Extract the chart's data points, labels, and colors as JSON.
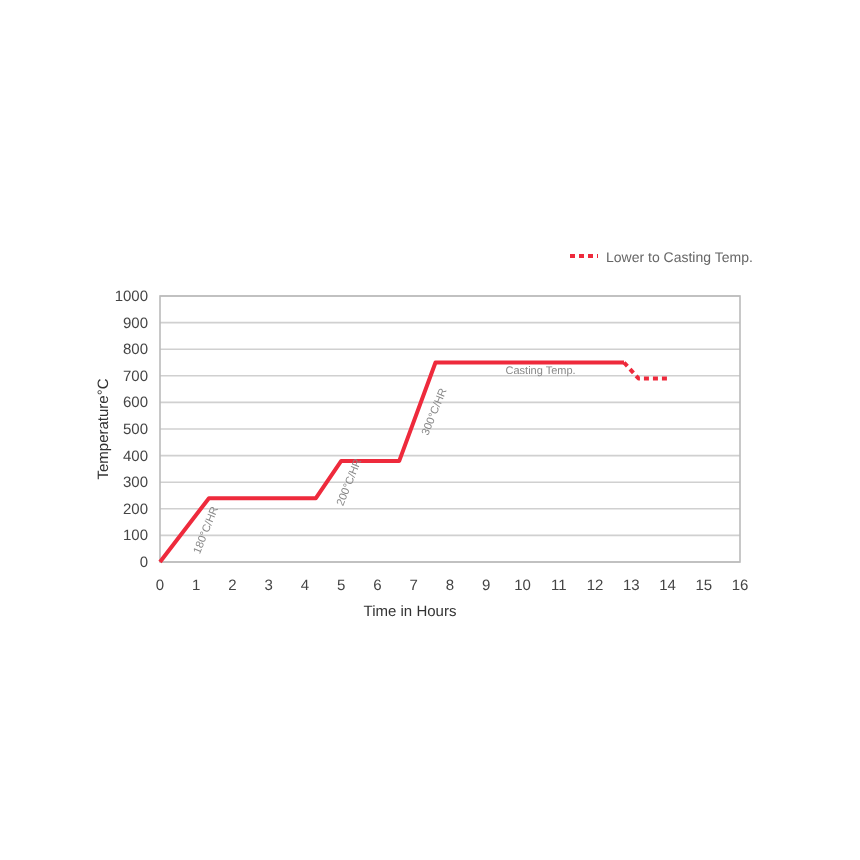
{
  "chart_data": {
    "type": "line",
    "xlabel": "Time in Hours",
    "ylabel": "Temperature°C",
    "xlim": [
      0,
      16
    ],
    "xticks": [
      0,
      1,
      2,
      3,
      4,
      5,
      6,
      7,
      8,
      9,
      10,
      11,
      12,
      13,
      14,
      15,
      16
    ],
    "ylim": [
      0,
      1000
    ],
    "yticks": [
      0,
      100,
      200,
      300,
      400,
      500,
      600,
      700,
      800,
      900,
      1000
    ],
    "grid": "y",
    "legend": "top right",
    "marker": "none",
    "series": [
      {
        "color": "#ee2a3c",
        "line_style": "solid",
        "x": [
          0,
          1.35,
          4.3,
          5.0,
          6.6,
          7.6,
          12.8
        ],
        "values": [
          0,
          240,
          240,
          380,
          380,
          750,
          750
        ]
      },
      {
        "name": "Lower to Casting Temp.",
        "color": "#ee2a3c",
        "line_style": "dotted",
        "x": [
          12.8,
          13.2,
          14
        ],
        "values": [
          750,
          690,
          690
        ]
      }
    ],
    "annotations": [
      {
        "text": "180°C/HR",
        "x": 0.8,
        "y": 115
      },
      {
        "text": "200°C/HR",
        "x": 4.75,
        "y": 295
      },
      {
        "text": "300°C/HR",
        "x": 7.1,
        "y": 560
      },
      {
        "text": "Casting Temp.",
        "x": 10.5,
        "y": 750
      }
    ]
  }
}
